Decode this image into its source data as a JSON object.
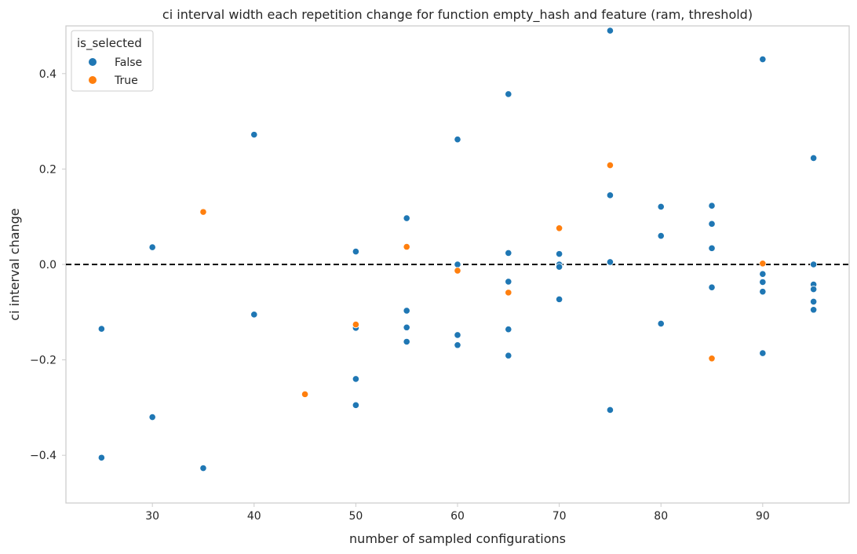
{
  "chart_data": {
    "type": "scatter",
    "title": "ci interval width each repetition change for function empty_hash and feature (ram, threshold)",
    "xlabel": "number of sampled configurations",
    "ylabel": "ci interval change",
    "xlim": [
      21.5,
      98.5
    ],
    "ylim": [
      -0.5,
      0.5
    ],
    "xticks": [
      30,
      40,
      50,
      60,
      70,
      80,
      90
    ],
    "yticks": [
      0.4,
      0.2,
      0.0,
      -0.2,
      -0.4
    ],
    "ytick_labels": [
      "0.4",
      "0.2",
      "0.0",
      "−0.2",
      "−0.4"
    ],
    "grid": false,
    "reference_line": {
      "y": 0.0,
      "style": "dashed",
      "color": "#000000"
    },
    "legend": {
      "title": "is_selected",
      "placement": "top-left"
    },
    "series": [
      {
        "name": "False",
        "color": "#1f77b4",
        "points": [
          [
            25,
            -0.135
          ],
          [
            25,
            -0.405
          ],
          [
            30,
            0.036
          ],
          [
            30,
            -0.32
          ],
          [
            35,
            -0.427
          ],
          [
            40,
            0.272
          ],
          [
            40,
            -0.105
          ],
          [
            50,
            0.027
          ],
          [
            50,
            -0.133
          ],
          [
            50,
            -0.24
          ],
          [
            50,
            -0.295
          ],
          [
            55,
            0.097
          ],
          [
            55,
            -0.097
          ],
          [
            55,
            -0.132
          ],
          [
            55,
            -0.162
          ],
          [
            60,
            0.262
          ],
          [
            60,
            0.0
          ],
          [
            60,
            -0.148
          ],
          [
            60,
            -0.169
          ],
          [
            65,
            0.357
          ],
          [
            65,
            0.024
          ],
          [
            65,
            -0.036
          ],
          [
            65,
            -0.136
          ],
          [
            65,
            -0.191
          ],
          [
            70,
            0.022
          ],
          [
            70,
            0.0
          ],
          [
            70,
            -0.005
          ],
          [
            70,
            -0.073
          ],
          [
            75,
            0.49
          ],
          [
            75,
            0.145
          ],
          [
            75,
            0.005
          ],
          [
            75,
            -0.305
          ],
          [
            80,
            0.121
          ],
          [
            80,
            0.06
          ],
          [
            80,
            -0.124
          ],
          [
            85,
            0.123
          ],
          [
            85,
            0.085
          ],
          [
            85,
            0.034
          ],
          [
            85,
            -0.048
          ],
          [
            90,
            0.43
          ],
          [
            90,
            -0.02
          ],
          [
            90,
            -0.037
          ],
          [
            90,
            -0.057
          ],
          [
            90,
            -0.186
          ],
          [
            95,
            0.223
          ],
          [
            95,
            0.0
          ],
          [
            95,
            -0.042
          ],
          [
            95,
            -0.052
          ],
          [
            95,
            -0.078
          ],
          [
            95,
            -0.095
          ]
        ]
      },
      {
        "name": "True",
        "color": "#ff7f0e",
        "points": [
          [
            35,
            0.11
          ],
          [
            45,
            -0.272
          ],
          [
            50,
            -0.126
          ],
          [
            55,
            0.037
          ],
          [
            60,
            -0.013
          ],
          [
            65,
            -0.059
          ],
          [
            70,
            0.076
          ],
          [
            75,
            0.208
          ],
          [
            85,
            -0.197
          ],
          [
            90,
            0.002
          ]
        ]
      }
    ]
  }
}
